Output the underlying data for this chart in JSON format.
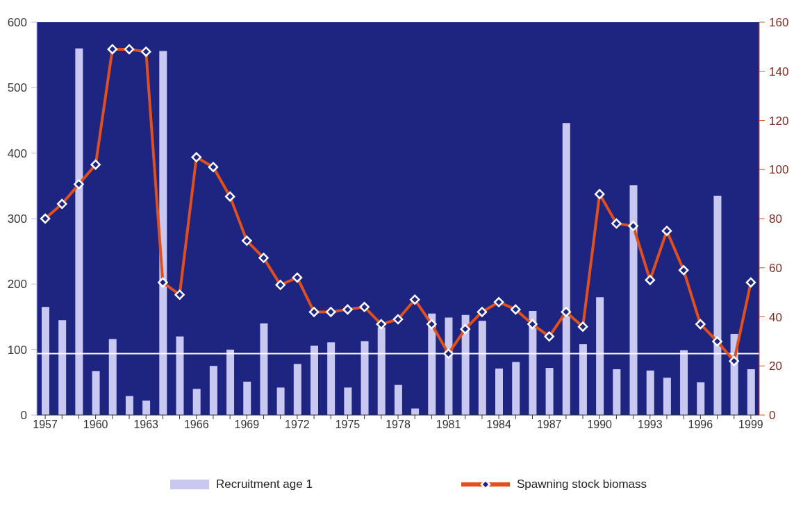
{
  "chart_data": {
    "type": "bar",
    "x": [
      1957,
      1958,
      1959,
      1960,
      1961,
      1962,
      1963,
      1964,
      1965,
      1966,
      1967,
      1968,
      1969,
      1970,
      1971,
      1972,
      1973,
      1974,
      1975,
      1976,
      1977,
      1978,
      1979,
      1980,
      1981,
      1982,
      1983,
      1984,
      1985,
      1986,
      1987,
      1988,
      1989,
      1990,
      1991,
      1992,
      1993,
      1994,
      1995,
      1996,
      1997,
      1998,
      1999
    ],
    "series": [
      {
        "name": "Recruitment age 1",
        "color": "#c8c8f0",
        "values": [
          165,
          145,
          560,
          67,
          116,
          29,
          22,
          556,
          120,
          40,
          75,
          100,
          51,
          140,
          42,
          78,
          106,
          111,
          42,
          113,
          134,
          46,
          10,
          155,
          149,
          153,
          144,
          71,
          81,
          159,
          72,
          446,
          108,
          180,
          70,
          351,
          68,
          57,
          99,
          50,
          335,
          124,
          70
        ]
      },
      {
        "name": "Spawning stock biomass",
        "type": "line",
        "axis": "y2",
        "color": "#e0501e",
        "values": [
          80,
          86,
          94,
          102,
          149,
          149,
          148,
          54,
          49,
          105,
          101,
          89,
          71,
          64,
          53,
          56,
          42,
          42,
          43,
          44,
          37,
          39,
          47,
          37,
          25,
          35,
          42,
          46,
          43,
          37,
          32,
          42,
          36,
          90,
          78,
          77,
          55,
          75,
          59,
          37,
          30,
          22,
          54
        ]
      }
    ],
    "xlim": [
      1956.5,
      1999.5
    ],
    "xticks": [
      1957,
      {
        "value": 1958,
        "label": null
      },
      {
        "value": 1959,
        "label": null
      },
      1960,
      {
        "value": 1961,
        "label": null
      },
      {
        "value": 1962,
        "label": null
      },
      1963,
      {
        "value": 1964,
        "label": null
      },
      {
        "value": 1965,
        "label": null
      },
      1966,
      {
        "value": 1967,
        "label": null
      },
      {
        "value": 1968,
        "label": null
      },
      1969,
      {
        "value": 1970,
        "label": null
      },
      {
        "value": 1971,
        "label": null
      },
      1972,
      {
        "value": 1973,
        "label": null
      },
      {
        "value": 1974,
        "label": null
      },
      1975,
      {
        "value": 1976,
        "label": null
      },
      {
        "value": 1977,
        "label": null
      },
      1978,
      {
        "value": 1979,
        "label": null
      },
      {
        "value": 1980,
        "label": null
      },
      1981,
      {
        "value": 1982,
        "label": null
      },
      {
        "value": 1983,
        "label": null
      },
      1984,
      {
        "value": 1985,
        "label": null
      },
      {
        "value": 1986,
        "label": null
      },
      1987,
      {
        "value": 1988,
        "label": null
      },
      {
        "value": 1989,
        "label": null
      },
      1990,
      {
        "value": 1991,
        "label": null
      },
      {
        "value": 1992,
        "label": null
      },
      1993,
      {
        "value": 1994,
        "label": null
      },
      {
        "value": 1995,
        "label": null
      },
      1996,
      {
        "value": 1997,
        "label": null
      },
      {
        "value": 1998,
        "label": null
      },
      1999
    ],
    "ylim": [
      0,
      600
    ],
    "yticks": [
      0,
      100,
      200,
      300,
      400,
      500,
      600
    ],
    "y2lim": [
      0,
      160
    ],
    "y2ticks": [
      0,
      20,
      40,
      60,
      80,
      100,
      120,
      140,
      160
    ],
    "ref_lines": [
      {
        "axis": "y2",
        "value": 25,
        "color": "#ffffff"
      }
    ],
    "marker": "diamond",
    "line_style": "solid",
    "grid": false,
    "legend": "bottom"
  }
}
